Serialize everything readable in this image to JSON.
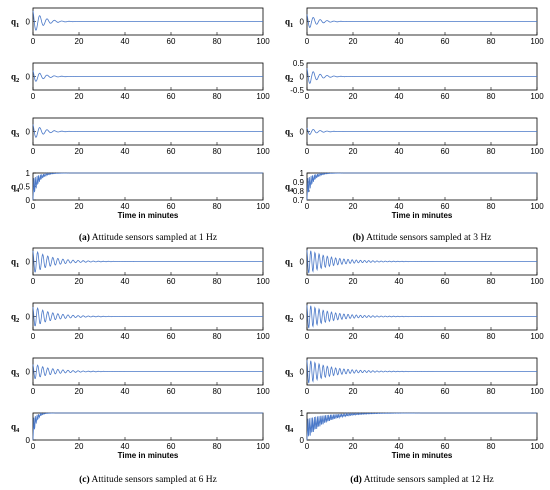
{
  "chart_data": [
    {
      "type": "line",
      "caption_letter": "(a)",
      "caption_text": " Attitude sensors sampled at 1 Hz",
      "xlabel": "Time in minutes",
      "xlim": [
        0,
        100
      ],
      "xticks": [
        "0",
        "20",
        "40",
        "60",
        "80",
        "100"
      ],
      "line_color": "#4a78c8",
      "series": [
        {
          "label_base": "q",
          "label_sub": "1",
          "ylim": [
            -1,
            1
          ],
          "yticks": [
            "0"
          ],
          "settled_value": 0,
          "oscillation": "large, decays within ~5 min"
        },
        {
          "label_base": "q",
          "label_sub": "2",
          "ylim": [
            -1,
            1
          ],
          "yticks": [
            "0"
          ],
          "settled_value": 0,
          "oscillation": "moderate, decays within ~5 min"
        },
        {
          "label_base": "q",
          "label_sub": "3",
          "ylim": [
            -1,
            1
          ],
          "yticks": [
            "0"
          ],
          "settled_value": 0,
          "oscillation": "moderate, decays within ~5 min"
        },
        {
          "label_base": "q",
          "label_sub": "4",
          "ylim": [
            0,
            1
          ],
          "yticks": [
            "0",
            "0.5",
            "1"
          ],
          "settled_value": 1,
          "oscillation": "rises to 1 within ~3 min"
        }
      ]
    },
    {
      "type": "line",
      "caption_letter": "(b)",
      "caption_text": " Attitude sensors sampled at 3 Hz",
      "xlabel": "Time in minutes",
      "xlim": [
        0,
        100
      ],
      "xticks": [
        "0",
        "20",
        "40",
        "60",
        "80",
        "100"
      ],
      "line_color": "#4a78c8",
      "series": [
        {
          "label_base": "q",
          "label_sub": "1",
          "ylim": [
            -1,
            1
          ],
          "yticks": [
            "0"
          ],
          "settled_value": 0,
          "oscillation": "moderate, decays within ~5 min"
        },
        {
          "label_base": "q",
          "label_sub": "2",
          "ylim": [
            -0.5,
            0.5
          ],
          "yticks": [
            "-0.5",
            "0",
            "0.5"
          ],
          "settled_value": 0,
          "oscillation": "moderate, decays within ~5 min"
        },
        {
          "label_base": "q",
          "label_sub": "3",
          "ylim": [
            -1,
            1
          ],
          "yticks": [
            "0"
          ],
          "settled_value": 0,
          "oscillation": "small, decays within ~5 min"
        },
        {
          "label_base": "q",
          "label_sub": "4",
          "ylim": [
            0.7,
            1
          ],
          "yticks": [
            "0.7",
            "0.8",
            "0.9",
            "1"
          ],
          "settled_value": 1,
          "oscillation": "rises to 1 within ~3 min"
        }
      ]
    },
    {
      "type": "line",
      "caption_letter": "(c)",
      "caption_text": " Attitude sensors sampled at 6 Hz",
      "xlabel": "Time in minutes",
      "xlim": [
        0,
        100
      ],
      "xticks": [
        "0",
        "20",
        "40",
        "60",
        "80",
        "100"
      ],
      "line_color": "#4a78c8",
      "series": [
        {
          "label_base": "q",
          "label_sub": "1",
          "ylim": [
            -1,
            1
          ],
          "yticks": [
            "0"
          ],
          "settled_value": 0,
          "oscillation": "large, decays within ~10 min"
        },
        {
          "label_base": "q",
          "label_sub": "2",
          "ylim": [
            -1,
            1
          ],
          "yticks": [
            "0"
          ],
          "settled_value": 0,
          "oscillation": "large, decays within ~10 min"
        },
        {
          "label_base": "q",
          "label_sub": "3",
          "ylim": [
            -1,
            1
          ],
          "yticks": [
            "0"
          ],
          "settled_value": 0,
          "oscillation": "moderate, decays within ~10 min"
        },
        {
          "label_base": "q",
          "label_sub": "4",
          "ylim": [
            0,
            1
          ],
          "yticks": [
            "0"
          ],
          "settled_value": 1,
          "oscillation": "rises to 1 within ~2 min"
        }
      ]
    },
    {
      "type": "line",
      "caption_letter": "(d)",
      "caption_text": " Attitude sensors sampled at 12 Hz",
      "xlabel": "Time in minutes",
      "xlim": [
        0,
        100
      ],
      "xticks": [
        "0",
        "20",
        "40",
        "60",
        "80",
        "100"
      ],
      "line_color": "#4a78c8",
      "series": [
        {
          "label_base": "q",
          "label_sub": "1",
          "ylim": [
            -1,
            1
          ],
          "yticks": [
            "0"
          ],
          "settled_value": 0,
          "oscillation": "large, decays within ~12 min"
        },
        {
          "label_base": "q",
          "label_sub": "2",
          "ylim": [
            -1,
            1
          ],
          "yticks": [
            "0"
          ],
          "settled_value": 0,
          "oscillation": "large, decays within ~12 min"
        },
        {
          "label_base": "q",
          "label_sub": "3",
          "ylim": [
            -1,
            1
          ],
          "yticks": [
            "0"
          ],
          "settled_value": 0,
          "oscillation": "large, decays within ~12 min"
        },
        {
          "label_base": "q",
          "label_sub": "4",
          "ylim": [
            0,
            1
          ],
          "yticks": [
            "0",
            "1"
          ],
          "settled_value": 1,
          "oscillation": "rises smoothly to 1 within ~10 min"
        }
      ]
    }
  ]
}
